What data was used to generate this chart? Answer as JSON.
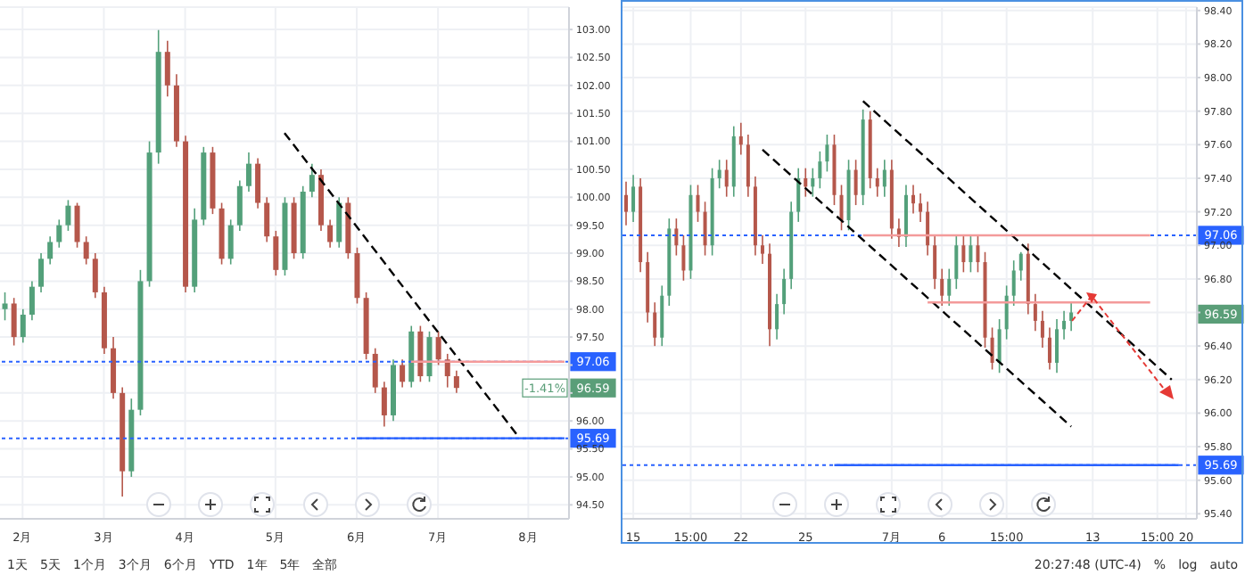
{
  "chart_data": [
    {
      "type": "candlestick",
      "grid": true,
      "categories": [
        null,
        null,
        "2月",
        null,
        null,
        null,
        null,
        null,
        null,
        null,
        null,
        "3月",
        null,
        null,
        null,
        null,
        null,
        null,
        null,
        null,
        "4月",
        null,
        null,
        null,
        null,
        null,
        null,
        null,
        null,
        null,
        "5月",
        null,
        null,
        null,
        null,
        null,
        null,
        null,
        null,
        "6月",
        null,
        null,
        null,
        null,
        null,
        null,
        null,
        null,
        "7月",
        null,
        null,
        null,
        null,
        null,
        null,
        null,
        null,
        null,
        "8月",
        null,
        null,
        null,
        null
      ],
      "ohlc": [
        [
          98.0,
          98.3,
          97.8,
          98.1
        ],
        [
          98.1,
          98.2,
          97.35,
          97.5
        ],
        [
          97.5,
          98.0,
          97.4,
          97.9
        ],
        [
          97.9,
          98.5,
          97.8,
          98.4
        ],
        [
          98.4,
          99.0,
          98.3,
          98.9
        ],
        [
          98.9,
          99.3,
          98.8,
          99.2
        ],
        [
          99.2,
          99.6,
          99.1,
          99.5
        ],
        [
          99.5,
          99.95,
          99.4,
          99.85
        ],
        [
          99.85,
          99.9,
          99.1,
          99.2
        ],
        [
          99.2,
          99.3,
          98.8,
          98.9
        ],
        [
          98.9,
          99.0,
          98.2,
          98.3
        ],
        [
          98.3,
          98.4,
          97.2,
          97.3
        ],
        [
          97.3,
          97.5,
          96.4,
          96.5
        ],
        [
          96.5,
          96.6,
          94.65,
          95.1
        ],
        [
          95.1,
          96.4,
          95.0,
          96.2
        ],
        [
          96.2,
          98.7,
          96.1,
          98.5
        ],
        [
          98.5,
          101.0,
          98.4,
          100.8
        ],
        [
          100.8,
          102.99,
          100.6,
          102.6
        ],
        [
          102.6,
          102.8,
          101.8,
          102.0
        ],
        [
          102.0,
          102.2,
          100.9,
          101.0
        ],
        [
          101.0,
          101.1,
          98.3,
          98.4
        ],
        [
          98.4,
          99.8,
          98.3,
          99.6
        ],
        [
          99.6,
          100.9,
          99.5,
          100.8
        ],
        [
          100.8,
          100.9,
          99.7,
          99.8
        ],
        [
          99.8,
          99.9,
          98.8,
          98.9
        ],
        [
          98.9,
          99.6,
          98.8,
          99.5
        ],
        [
          99.5,
          100.3,
          99.4,
          100.2
        ],
        [
          100.2,
          100.8,
          100.1,
          100.6
        ],
        [
          100.6,
          100.7,
          99.8,
          99.9
        ],
        [
          99.9,
          100.0,
          99.2,
          99.3
        ],
        [
          99.3,
          99.4,
          98.6,
          98.7
        ],
        [
          98.7,
          100.0,
          98.6,
          99.9
        ],
        [
          99.9,
          100.0,
          98.9,
          99.0
        ],
        [
          99.0,
          100.2,
          98.9,
          100.1
        ],
        [
          100.1,
          100.6,
          100.0,
          100.4
        ],
        [
          100.4,
          100.5,
          99.4,
          99.5
        ],
        [
          99.5,
          99.6,
          99.1,
          99.2
        ],
        [
          99.2,
          100.0,
          99.1,
          99.9
        ],
        [
          99.9,
          100.0,
          98.9,
          99.0
        ],
        [
          99.0,
          99.1,
          98.1,
          98.2
        ],
        [
          98.2,
          98.3,
          97.1,
          97.2
        ],
        [
          97.2,
          97.3,
          96.5,
          96.6
        ],
        [
          96.6,
          96.7,
          95.9,
          96.1
        ],
        [
          96.1,
          97.1,
          96.0,
          97.0
        ],
        [
          97.0,
          97.1,
          96.6,
          96.7
        ],
        [
          96.7,
          97.7,
          96.6,
          97.6
        ],
        [
          97.6,
          97.7,
          96.7,
          96.8
        ],
        [
          96.8,
          97.6,
          96.7,
          97.5
        ],
        [
          97.5,
          97.6,
          97.0,
          97.1
        ],
        [
          97.1,
          97.2,
          96.6,
          96.8
        ],
        [
          96.8,
          96.9,
          96.5,
          96.59
        ],
        null,
        null,
        null,
        null,
        null,
        null,
        null,
        null,
        null,
        null,
        null,
        null
      ],
      "series": [
        {
          "type": "line",
          "line_style": "dashed",
          "color": "#000000",
          "values": [
            null,
            null,
            null,
            null,
            null,
            null,
            null,
            null,
            null,
            null,
            null,
            null,
            null,
            null,
            null,
            null,
            null,
            null,
            null,
            null,
            null,
            null,
            null,
            null,
            null,
            null,
            null,
            null,
            null,
            null,
            null,
            101.15,
            null,
            null,
            null,
            null,
            null,
            null,
            null,
            null,
            null,
            null,
            null,
            null,
            null,
            null,
            null,
            null,
            null,
            null,
            null,
            null,
            null,
            null,
            null,
            null,
            null,
            95.7,
            null,
            null,
            null,
            null,
            null
          ]
        },
        {
          "type": "line",
          "line_style": "solid",
          "color": "#f49a9a",
          "values": [
            null,
            null,
            null,
            null,
            null,
            null,
            null,
            null,
            null,
            null,
            null,
            null,
            null,
            null,
            null,
            null,
            null,
            null,
            null,
            null,
            null,
            null,
            null,
            null,
            null,
            null,
            null,
            null,
            null,
            null,
            null,
            null,
            null,
            null,
            null,
            null,
            null,
            null,
            null,
            null,
            null,
            null,
            null,
            null,
            null,
            97.06,
            null,
            null,
            null,
            null,
            null,
            null,
            null,
            null,
            null,
            null,
            null,
            null,
            null,
            null,
            null,
            null,
            97.06
          ]
        },
        {
          "type": "line",
          "line_style": "solid",
          "color": "#2962ff",
          "values": [
            null,
            null,
            null,
            null,
            null,
            null,
            null,
            null,
            null,
            null,
            null,
            null,
            null,
            null,
            null,
            null,
            null,
            null,
            null,
            null,
            null,
            null,
            null,
            null,
            null,
            null,
            null,
            null,
            null,
            null,
            null,
            null,
            null,
            null,
            null,
            null,
            null,
            null,
            null,
            95.69,
            null,
            null,
            null,
            null,
            null,
            null,
            null,
            null,
            null,
            null,
            null,
            null,
            null,
            null,
            null,
            null,
            null,
            null,
            null,
            null,
            null,
            null,
            95.69
          ]
        }
      ],
      "ylim": [
        94.25,
        103.4
      ],
      "yticks": [
        {
          "value": 94.5,
          "label": "94.50"
        },
        {
          "value": 95,
          "label": "95.00"
        },
        {
          "value": 95.5,
          "label": "95.50"
        },
        {
          "value": 96,
          "label": "96.00"
        },
        {
          "value": 96.5,
          "label": null
        },
        {
          "value": 97,
          "label": null
        },
        {
          "value": 97.5,
          "label": "97.50"
        },
        {
          "value": 98,
          "label": "98.00"
        },
        {
          "value": 98.5,
          "label": "98.50"
        },
        {
          "value": 99,
          "label": "99.00"
        },
        {
          "value": 99.5,
          "label": "99.50"
        },
        {
          "value": 100,
          "label": "100.00"
        },
        {
          "value": 100.5,
          "label": "100.50"
        },
        {
          "value": 101,
          "label": "101.00"
        },
        {
          "value": 101.5,
          "label": "101.50"
        },
        {
          "value": 102,
          "label": "102.00"
        },
        {
          "value": 102.5,
          "label": "102.50"
        },
        {
          "value": 103,
          "label": "103.00"
        }
      ],
      "ref_lines": [
        {
          "axis": "y",
          "value": 97.06,
          "label": "97.06",
          "color": "#2962ff",
          "line_style": "dotted"
        },
        {
          "axis": "y",
          "value": 95.69,
          "label": "95.69",
          "color": "#2962ff",
          "line_style": "dotted"
        }
      ],
      "annotations": [
        {
          "text": "96.59",
          "y": 96.59
        },
        {
          "text": "-1.41%",
          "y": 96.59
        },
        "1天",
        "5天",
        "1个月",
        "3个月",
        "6个月",
        "YTD",
        "1年",
        "5年",
        "全部"
      ]
    },
    {
      "type": "candlestick",
      "grid": true,
      "categories": [
        null,
        "15",
        null,
        null,
        null,
        null,
        null,
        null,
        null,
        "15:00",
        null,
        null,
        null,
        null,
        null,
        null,
        "22",
        null,
        null,
        null,
        null,
        null,
        null,
        null,
        null,
        "25",
        null,
        null,
        null,
        null,
        null,
        null,
        null,
        null,
        null,
        null,
        null,
        "7月",
        null,
        null,
        null,
        null,
        null,
        null,
        "6",
        null,
        null,
        null,
        null,
        null,
        null,
        null,
        null,
        "15:00",
        null,
        null,
        null,
        null,
        null,
        null,
        null,
        null,
        null,
        null,
        null,
        "13",
        null,
        null,
        null,
        null,
        null,
        null,
        null,
        null,
        "15:00",
        null,
        null,
        null,
        "20",
        null
      ],
      "ohlc": [
        [
          97.3,
          97.38,
          97.12,
          97.2
        ],
        [
          97.2,
          97.42,
          97.14,
          97.35
        ],
        [
          97.35,
          97.4,
          96.84,
          96.9
        ],
        [
          96.9,
          96.96,
          96.54,
          96.6
        ],
        [
          96.6,
          96.66,
          96.4,
          96.45
        ],
        [
          96.45,
          96.76,
          96.4,
          96.7
        ],
        [
          96.7,
          97.16,
          96.64,
          97.1
        ],
        [
          97.1,
          97.16,
          96.94,
          97.0
        ],
        [
          97.0,
          97.06,
          96.79,
          96.85
        ],
        [
          96.85,
          97.36,
          96.8,
          97.3
        ],
        [
          97.3,
          97.36,
          97.14,
          97.2
        ],
        [
          97.2,
          97.26,
          96.94,
          97.0
        ],
        [
          97.0,
          97.46,
          96.94,
          97.4
        ],
        [
          97.4,
          97.51,
          97.34,
          97.45
        ],
        [
          97.45,
          97.51,
          97.29,
          97.35
        ],
        [
          97.35,
          97.71,
          97.29,
          97.65
        ],
        [
          97.65,
          97.73,
          97.54,
          97.6
        ],
        [
          97.6,
          97.66,
          97.29,
          97.35
        ],
        [
          97.35,
          97.41,
          96.94,
          97.0
        ],
        [
          97.0,
          97.06,
          96.89,
          96.95
        ],
        [
          96.95,
          97.01,
          96.4,
          96.5
        ],
        [
          96.5,
          96.71,
          96.44,
          96.65
        ],
        [
          96.65,
          96.86,
          96.59,
          96.8
        ],
        [
          96.8,
          97.26,
          96.74,
          97.2
        ],
        [
          97.2,
          97.46,
          97.14,
          97.4
        ],
        [
          97.4,
          97.46,
          97.29,
          97.35
        ],
        [
          97.35,
          97.46,
          97.29,
          97.4
        ],
        [
          97.4,
          97.56,
          97.34,
          97.5
        ],
        [
          97.5,
          97.66,
          97.44,
          97.6
        ],
        [
          97.6,
          97.66,
          97.24,
          97.3
        ],
        [
          97.3,
          97.36,
          97.09,
          97.15
        ],
        [
          97.15,
          97.51,
          97.09,
          97.45
        ],
        [
          97.45,
          97.51,
          97.24,
          97.3
        ],
        [
          97.3,
          97.81,
          97.24,
          97.75
        ],
        [
          97.75,
          97.8,
          97.34,
          97.4
        ],
        [
          97.4,
          97.46,
          97.29,
          97.35
        ],
        [
          97.35,
          97.51,
          97.29,
          97.45
        ],
        [
          97.45,
          97.51,
          97.04,
          97.1
        ],
        [
          97.1,
          97.16,
          96.99,
          97.05
        ],
        [
          97.05,
          97.36,
          96.99,
          97.3
        ],
        [
          97.3,
          97.36,
          97.19,
          97.25
        ],
        [
          97.25,
          97.31,
          97.14,
          97.2
        ],
        [
          97.2,
          97.26,
          96.94,
          97.0
        ],
        [
          97.0,
          97.06,
          96.74,
          96.8
        ],
        [
          96.8,
          96.86,
          96.64,
          96.7
        ],
        [
          96.7,
          96.86,
          96.64,
          96.8
        ],
        [
          96.8,
          97.06,
          96.74,
          97.0
        ],
        [
          97.0,
          97.06,
          96.84,
          96.9
        ],
        [
          96.9,
          97.06,
          96.84,
          97.0
        ],
        [
          97.0,
          97.06,
          96.84,
          96.9
        ],
        [
          96.9,
          96.96,
          96.39,
          96.45
        ],
        [
          96.45,
          96.51,
          96.26,
          96.3
        ],
        [
          96.3,
          96.56,
          96.24,
          96.5
        ],
        [
          96.5,
          96.76,
          96.44,
          96.7
        ],
        [
          96.7,
          96.91,
          96.64,
          96.85
        ],
        [
          96.85,
          96.96,
          96.79,
          96.95
        ],
        [
          96.95,
          97.01,
          96.59,
          96.65
        ],
        [
          96.65,
          96.71,
          96.49,
          96.55
        ],
        [
          96.55,
          96.61,
          96.39,
          96.45
        ],
        [
          96.45,
          96.51,
          96.26,
          96.3
        ],
        [
          96.3,
          96.56,
          96.24,
          96.5
        ],
        [
          96.5,
          96.61,
          96.44,
          96.55
        ],
        [
          96.55,
          96.66,
          96.49,
          96.6
        ],
        null,
        null,
        null,
        null,
        null,
        null,
        null,
        null,
        null,
        null,
        null,
        null,
        null,
        null,
        null,
        null,
        null
      ],
      "series": [
        {
          "type": "line",
          "line_style": "dashed",
          "color": "#000000",
          "values": [
            null,
            null,
            null,
            null,
            null,
            null,
            null,
            null,
            null,
            null,
            null,
            null,
            null,
            null,
            null,
            null,
            null,
            null,
            null,
            null,
            null,
            null,
            null,
            null,
            null,
            null,
            null,
            null,
            null,
            null,
            null,
            null,
            null,
            97.86,
            null,
            null,
            null,
            null,
            null,
            null,
            null,
            null,
            null,
            null,
            null,
            null,
            null,
            null,
            null,
            null,
            null,
            null,
            null,
            null,
            null,
            null,
            null,
            null,
            null,
            null,
            null,
            null,
            null,
            null,
            null,
            null,
            null,
            null,
            null,
            null,
            null,
            null,
            null,
            null,
            null,
            null,
            96.2,
            null,
            null,
            null
          ]
        },
        {
          "type": "line",
          "line_style": "dashed",
          "color": "#000000",
          "values": [
            null,
            null,
            null,
            null,
            null,
            null,
            null,
            null,
            null,
            null,
            null,
            null,
            null,
            null,
            null,
            null,
            null,
            null,
            null,
            97.57,
            null,
            null,
            null,
            null,
            null,
            null,
            null,
            null,
            null,
            null,
            null,
            null,
            null,
            null,
            null,
            null,
            null,
            null,
            null,
            null,
            null,
            null,
            null,
            null,
            null,
            null,
            null,
            null,
            null,
            null,
            null,
            null,
            null,
            null,
            null,
            null,
            null,
            null,
            null,
            null,
            null,
            null,
            95.92,
            null,
            null,
            null,
            null,
            null,
            null,
            null,
            null,
            null,
            null,
            null,
            null,
            null,
            null,
            null,
            null,
            null
          ]
        },
        {
          "type": "line",
          "line_style": "solid",
          "color": "#f49a9a",
          "values": [
            null,
            null,
            null,
            null,
            null,
            null,
            null,
            null,
            null,
            null,
            null,
            null,
            null,
            null,
            null,
            null,
            null,
            null,
            null,
            null,
            null,
            null,
            null,
            null,
            null,
            null,
            null,
            null,
            null,
            null,
            null,
            null,
            null,
            97.06,
            null,
            null,
            null,
            null,
            null,
            null,
            null,
            null,
            null,
            null,
            null,
            null,
            null,
            null,
            null,
            null,
            null,
            null,
            null,
            null,
            null,
            null,
            null,
            null,
            null,
            null,
            null,
            null,
            null,
            null,
            null,
            null,
            null,
            null,
            null,
            null,
            null,
            null,
            null,
            97.06,
            null,
            null,
            null,
            null,
            null,
            null
          ]
        },
        {
          "type": "line",
          "line_style": "solid",
          "color": "#f49a9a",
          "values": [
            null,
            null,
            null,
            null,
            null,
            null,
            null,
            null,
            null,
            null,
            null,
            null,
            null,
            null,
            null,
            null,
            null,
            null,
            null,
            null,
            null,
            null,
            null,
            null,
            null,
            null,
            null,
            null,
            null,
            null,
            null,
            null,
            null,
            null,
            null,
            null,
            null,
            null,
            null,
            null,
            null,
            null,
            96.66,
            null,
            null,
            null,
            null,
            null,
            null,
            null,
            null,
            null,
            null,
            null,
            null,
            null,
            null,
            null,
            null,
            null,
            null,
            null,
            null,
            null,
            null,
            null,
            null,
            null,
            null,
            null,
            null,
            null,
            null,
            96.66,
            null,
            null,
            null,
            null,
            null,
            null
          ]
        },
        {
          "type": "line",
          "line_style": "solid",
          "color": "#2962ff",
          "values": [
            null,
            null,
            null,
            null,
            null,
            null,
            null,
            null,
            null,
            null,
            null,
            null,
            null,
            null,
            null,
            null,
            null,
            null,
            null,
            null,
            null,
            null,
            null,
            null,
            null,
            null,
            null,
            null,
            null,
            95.69,
            null,
            null,
            null,
            null,
            null,
            null,
            null,
            null,
            null,
            null,
            null,
            null,
            null,
            null,
            null,
            null,
            null,
            null,
            null,
            null,
            null,
            null,
            null,
            null,
            null,
            null,
            null,
            null,
            null,
            null,
            null,
            null,
            null,
            null,
            null,
            null,
            null,
            null,
            null,
            null,
            null,
            null,
            null,
            null,
            null,
            null,
            null,
            95.69,
            null,
            null
          ]
        }
      ],
      "ylim": [
        95.37,
        98.42
      ],
      "yticks": [
        {
          "value": 95.4,
          "label": "95.40"
        },
        {
          "value": 95.6,
          "label": "95.60"
        },
        {
          "value": 95.8,
          "label": "95.80"
        },
        {
          "value": 96,
          "label": "96.00"
        },
        {
          "value": 96.2,
          "label": "96.20"
        },
        {
          "value": 96.4,
          "label": "96.40"
        },
        {
          "value": 96.6,
          "label": null
        },
        {
          "value": 96.8,
          "label": "96.80"
        },
        {
          "value": 97,
          "label": "97.00"
        },
        {
          "value": 97.2,
          "label": "97.20"
        },
        {
          "value": 97.4,
          "label": "97.40"
        },
        {
          "value": 97.6,
          "label": "97.60"
        },
        {
          "value": 97.8,
          "label": "97.80"
        },
        {
          "value": 98,
          "label": "98.00"
        },
        {
          "value": 98.2,
          "label": "98.20"
        },
        {
          "value": 98.4,
          "label": "98.40"
        }
      ],
      "ref_lines": [
        {
          "axis": "y",
          "value": 97.06,
          "label": "97.06",
          "color": "#2962ff",
          "line_style": "dotted"
        },
        {
          "axis": "y",
          "value": 95.69,
          "label": "95.69",
          "color": "#2962ff",
          "line_style": "dotted"
        }
      ],
      "annotations": [
        {
          "text": "96.59",
          "y": 96.59
        },
        "20:27:48 (UTC-4)",
        "%",
        "log",
        "auto"
      ]
    }
  ]
}
